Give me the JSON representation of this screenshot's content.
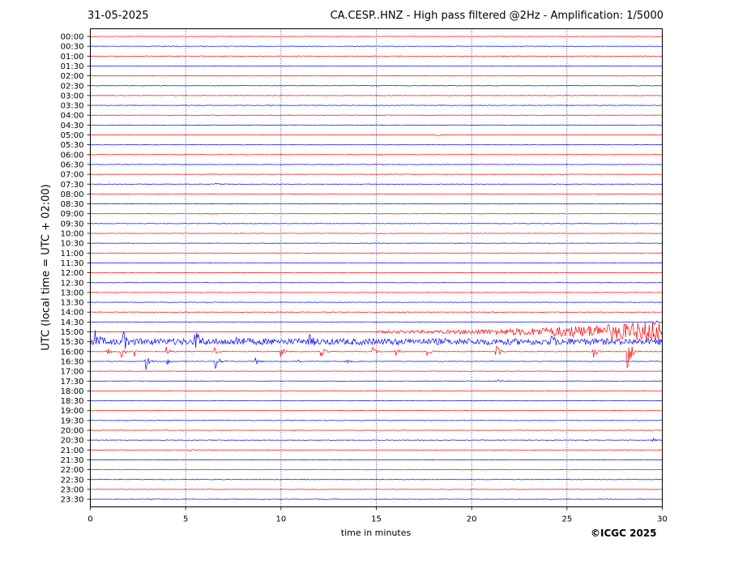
{
  "header": {
    "date": "31-05-2025",
    "title": "CA.CESP..HNZ - High pass filtered @2Hz - Amplification: 1/5000"
  },
  "copyright": "©ICGC 2025",
  "chart_data": {
    "type": "line",
    "subtype": "helicorder",
    "xlabel": "time in minutes",
    "ylabel": "UTC (local time = UTC + 02:00)",
    "xlim": [
      0,
      30
    ],
    "x_ticks": [
      0,
      5,
      10,
      15,
      20,
      25,
      30
    ],
    "grid": "vertical dotted lines at 5-minute intervals",
    "trace_colors": [
      "#ff0000",
      "#0000ff"
    ],
    "row_labels": [
      "00:00",
      "00:30",
      "01:00",
      "01:30",
      "02:00",
      "02:30",
      "03:00",
      "03:30",
      "04:00",
      "04:30",
      "05:00",
      "05:30",
      "06:00",
      "06:30",
      "07:00",
      "07:30",
      "08:00",
      "08:30",
      "09:00",
      "09:30",
      "10:00",
      "10:30",
      "11:00",
      "11:30",
      "12:00",
      "12:30",
      "13:00",
      "13:30",
      "14:00",
      "14:30",
      "15:00",
      "15:30",
      "16:00",
      "16:30",
      "17:00",
      "17:30",
      "18:00",
      "18:30",
      "19:00",
      "19:30",
      "20:00",
      "20:30",
      "21:00",
      "21:30",
      "22:00",
      "22:30",
      "23:00",
      "23:30"
    ],
    "series": [
      {
        "row": "05:00",
        "events": [
          {
            "t": 18.1,
            "amp": 0.18
          }
        ]
      },
      {
        "row": "07:30",
        "events": [
          {
            "t": 6.6,
            "amp": 0.12
          }
        ]
      },
      {
        "row": "09:00",
        "events": [
          {
            "t": 6.3,
            "amp": 0.08
          }
        ]
      },
      {
        "row": "14:00",
        "events": [
          {
            "t": 20.9,
            "amp": 0.12
          },
          {
            "t": 16.2,
            "amp": 0.08
          }
        ]
      },
      {
        "row": "14:30",
        "events": [
          {
            "t": 29.6,
            "amp": 0.3
          }
        ]
      },
      {
        "row": "15:00",
        "noise_ramp": {
          "start": 15.0,
          "end": 30,
          "start_amp": 0.12,
          "end_amp": 1.1
        }
      },
      {
        "row": "15:30",
        "noise_band": {
          "start": 0,
          "end": 30,
          "amp": 0.3
        },
        "events": [
          {
            "t": 0.3,
            "amp": 0.9
          },
          {
            "t": 1.7,
            "amp": 1.1
          },
          {
            "t": 5.5,
            "amp": 1.4
          },
          {
            "t": 7.7,
            "amp": 0.7
          },
          {
            "t": 11.5,
            "amp": 0.5
          },
          {
            "t": 24.2,
            "amp": 0.4
          }
        ]
      },
      {
        "row": "16:00",
        "events": [
          {
            "t": 0.9,
            "amp": 0.5
          },
          {
            "t": 1.6,
            "amp": 0.9
          },
          {
            "t": 2.3,
            "amp": 0.6
          },
          {
            "t": 4.0,
            "amp": 0.5
          },
          {
            "t": 6.5,
            "amp": 0.4
          },
          {
            "t": 10.0,
            "amp": 0.5
          },
          {
            "t": 12.1,
            "amp": 0.6
          },
          {
            "t": 14.8,
            "amp": 0.5
          },
          {
            "t": 16.0,
            "amp": 0.5
          },
          {
            "t": 17.7,
            "amp": 0.6
          },
          {
            "t": 21.3,
            "amp": 1.0
          },
          {
            "t": 26.4,
            "amp": 0.8
          },
          {
            "t": 28.2,
            "amp": 2.3
          }
        ]
      },
      {
        "row": "16:30",
        "events": [
          {
            "t": 2.9,
            "amp": 1.0
          },
          {
            "t": 4.0,
            "amp": 0.5
          },
          {
            "t": 6.6,
            "amp": 0.7
          },
          {
            "t": 8.7,
            "amp": 0.4
          },
          {
            "t": 10.9,
            "amp": 0.3
          },
          {
            "t": 13.4,
            "amp": 0.3
          }
        ]
      },
      {
        "row": "17:30",
        "events": [
          {
            "t": 21.4,
            "amp": 0.2
          }
        ]
      },
      {
        "row": "19:00",
        "events": [
          {
            "t": 3.5,
            "amp": 0.1
          }
        ]
      },
      {
        "row": "20:00",
        "events": [
          {
            "t": 10.6,
            "amp": 0.1
          }
        ]
      },
      {
        "row": "20:30",
        "events": [
          {
            "t": 29.5,
            "amp": 0.2
          }
        ]
      },
      {
        "row": "21:00",
        "events": [
          {
            "t": 5.2,
            "amp": 0.15
          },
          {
            "t": 6.2,
            "amp": 0.1
          },
          {
            "t": 8.6,
            "amp": 0.1
          }
        ]
      }
    ]
  }
}
